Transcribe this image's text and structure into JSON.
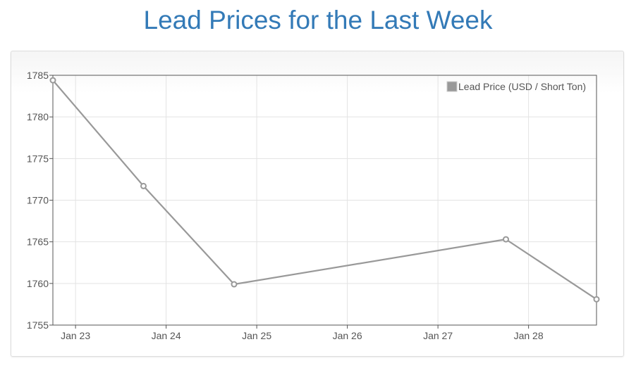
{
  "page": {
    "title": "Lead Prices for the Last Week"
  },
  "chart_data": {
    "type": "line",
    "title": "Lead Prices for the Last Week",
    "xlabel": "",
    "ylabel": "",
    "x_ticks": [
      "Jan 23",
      "Jan 24",
      "Jan 25",
      "Jan 26",
      "Jan 27",
      "Jan 28"
    ],
    "y_ticks": [
      1755,
      1760,
      1765,
      1770,
      1775,
      1780,
      1785
    ],
    "xlim": [
      "2024-01-22 18:00",
      "2024-01-28 18:00"
    ],
    "ylim": [
      1755,
      1785
    ],
    "grid": true,
    "legend": "top-right",
    "series": [
      {
        "name": "Lead Price (USD / Short Ton)",
        "color": "#999999",
        "points": [
          {
            "x": "2024-01-22 18:00",
            "y": 1784.4
          },
          {
            "x": "2024-01-23 18:00",
            "y": 1771.7
          },
          {
            "x": "2024-01-24 18:00",
            "y": 1759.9
          },
          {
            "x": "2024-01-27 18:00",
            "y": 1765.3
          },
          {
            "x": "2024-01-28 18:00",
            "y": 1758.1
          }
        ]
      }
    ]
  }
}
